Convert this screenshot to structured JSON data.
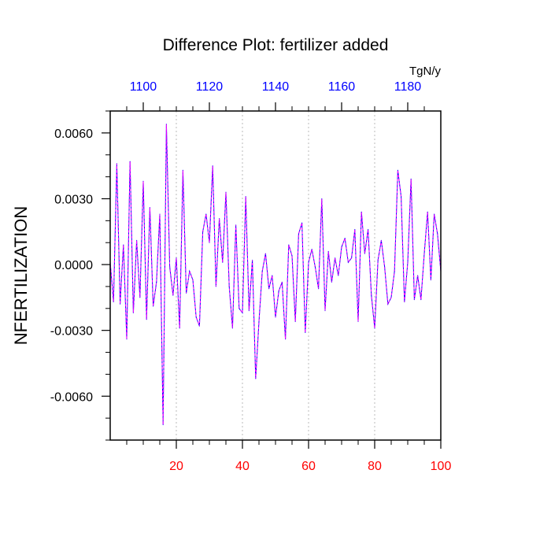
{
  "chart_data": {
    "type": "line",
    "title": "Difference Plot: fertilizer added",
    "units_label": "TgN/y",
    "ylabel": "NFERTILIZATION",
    "xlabel": "",
    "grid": "vertical-dashed",
    "xlim": [
      0,
      100
    ],
    "ylim": [
      -0.008,
      0.007
    ],
    "x_ticks": [
      "20",
      "40",
      "60",
      "80",
      "100"
    ],
    "x_tick_values": [
      20,
      40,
      60,
      80,
      100
    ],
    "top_ticks": [
      "1100",
      "1120",
      "1140",
      "1160",
      "1180"
    ],
    "top_tick_values": [
      1100,
      1120,
      1140,
      1160,
      1180
    ],
    "top_axis_range": [
      1090,
      1190
    ],
    "y_ticks": [
      "0.0060",
      "0.0030",
      "0.0000",
      "-0.0030",
      "-0.0060"
    ],
    "y_tick_values": [
      0.006,
      0.003,
      0.0,
      -0.003,
      -0.006
    ],
    "colors": {
      "bottom_axis_labels": "#ff0000",
      "top_axis_labels": "#0000ff",
      "series_line_a": "#0000ff",
      "series_line_b": "#ff00ff",
      "grid": "#aaaaaa",
      "axes": "#000000"
    },
    "series": [
      {
        "x": [
          0,
          1,
          2,
          3,
          4,
          5,
          6,
          7,
          8,
          9,
          10,
          11,
          12,
          13,
          14,
          15,
          16,
          17,
          18,
          19,
          20,
          21,
          22,
          23,
          24,
          25,
          26,
          27,
          28,
          29,
          30,
          31,
          32,
          33,
          34,
          35,
          36,
          37,
          38,
          39,
          40,
          41,
          42,
          43,
          44,
          45,
          46,
          47,
          48,
          49,
          50,
          51,
          52,
          53,
          54,
          55,
          56,
          57,
          58,
          59,
          60,
          61,
          62,
          63,
          64,
          65,
          66,
          67,
          68,
          69,
          70,
          71,
          72,
          73,
          74,
          75,
          76,
          77,
          78,
          79,
          80,
          81,
          82,
          83,
          84,
          85,
          86,
          87,
          88,
          89,
          90,
          91,
          92,
          93,
          94,
          95,
          96,
          97,
          98,
          99,
          100
        ],
        "values": [
          0.0001,
          -0.0017,
          0.0046,
          -0.0018,
          0.0009,
          -0.0034,
          0.0047,
          -0.0022,
          0.0011,
          -0.0015,
          0.0038,
          -0.0025,
          0.0026,
          -0.0019,
          -0.0008,
          0.0023,
          -0.0073,
          0.0064,
          -0.0001,
          -0.0014,
          0.0003,
          -0.0029,
          0.0043,
          -0.0013,
          -0.0003,
          -0.0007,
          -0.0024,
          -0.0028,
          0.0015,
          0.0023,
          0.001,
          0.0045,
          -0.001,
          0.0021,
          0.0001,
          0.0033,
          -0.001,
          -0.0029,
          0.0018,
          -0.002,
          -0.0022,
          0.0031,
          -0.0021,
          0.0002,
          -0.0052,
          -0.0026,
          -0.0003,
          0.0005,
          -0.0011,
          -0.0005,
          -0.0024,
          -0.0012,
          -0.0008,
          -0.0034,
          0.0009,
          0.0004,
          -0.0026,
          0.0014,
          0.0019,
          -0.0031,
          0.0001,
          0.0007,
          -0.0001,
          -0.0011,
          0.003,
          -0.0021,
          0.0006,
          -0.0008,
          0.0003,
          -0.0005,
          0.0008,
          0.0012,
          0.0001,
          0.0003,
          0.0016,
          -0.0026,
          0.0024,
          0.0005,
          0.0016,
          -0.0014,
          -0.0029,
          0.0002,
          0.0011,
          -0.0001,
          -0.0018,
          -0.0015,
          -0.0003,
          0.0043,
          0.0031,
          -0.0017,
          0.0001,
          0.0039,
          -0.0016,
          -0.0005,
          -0.0016,
          0.0005,
          0.0024,
          -0.0007,
          0.0023,
          0.0014,
          -0.0003
        ]
      }
    ]
  }
}
